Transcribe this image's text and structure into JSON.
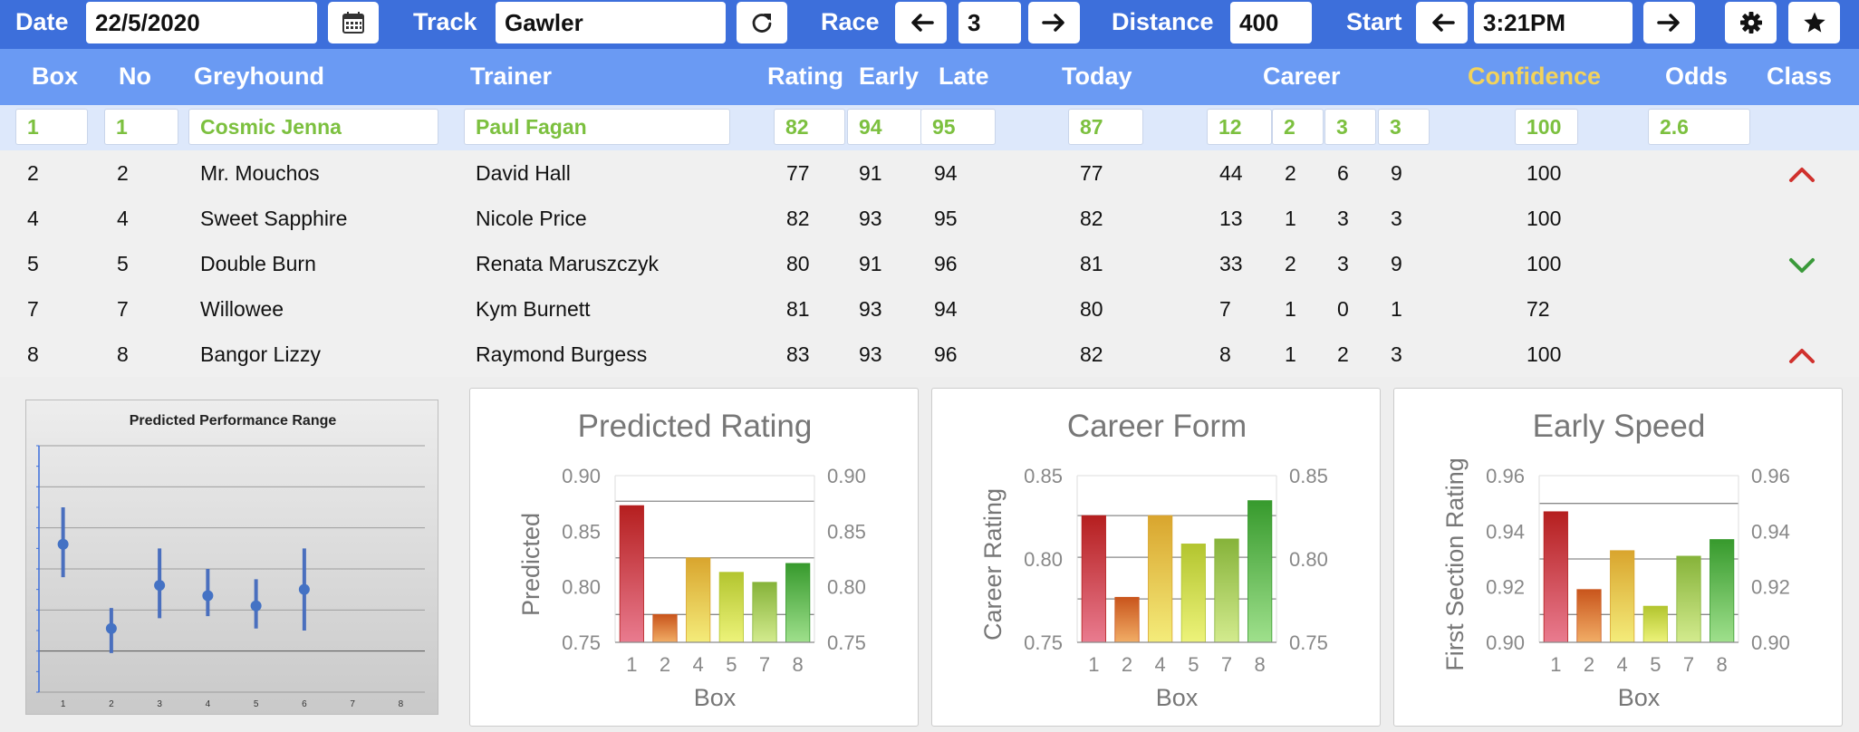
{
  "toolbar": {
    "date_label": "Date",
    "date_value": "22/5/2020",
    "calendar_icon": "calendar-icon",
    "track_label": "Track",
    "track_value": "Gawler",
    "refresh_icon": "refresh-icon",
    "race_label": "Race",
    "race_value": "3",
    "distance_label": "Distance",
    "distance_value": "400",
    "start_label": "Start",
    "start_value": "3:21PM",
    "settings_icon": "gear-icon",
    "favourite_icon": "star-icon"
  },
  "columns": {
    "box": "Box",
    "no": "No",
    "greyhound": "Greyhound",
    "trainer": "Trainer",
    "rating": "Rating",
    "early": "Early",
    "late": "Late",
    "today": "Today",
    "career": "Career",
    "confidence": "Confidence",
    "odds": "Odds",
    "class": "Class"
  },
  "selected_runner": {
    "box": "1",
    "no": "1",
    "greyhound": "Cosmic Jenna",
    "trainer": "Paul Fagan",
    "rating": "82",
    "early": "94",
    "late": "95",
    "today": "87",
    "career": [
      "12",
      "2",
      "3",
      "3"
    ],
    "confidence": "100",
    "odds": "2.6"
  },
  "runners": [
    {
      "box": "2",
      "no": "2",
      "greyhound": "Mr. Mouchos",
      "trainer": "David Hall",
      "rating": "77",
      "early": "91",
      "late": "94",
      "today": "77",
      "career": [
        "44",
        "2",
        "6",
        "9"
      ],
      "confidence": "100",
      "class_trend": "up"
    },
    {
      "box": "4",
      "no": "4",
      "greyhound": "Sweet Sapphire",
      "trainer": "Nicole Price",
      "rating": "82",
      "early": "93",
      "late": "95",
      "today": "82",
      "career": [
        "13",
        "1",
        "3",
        "3"
      ],
      "confidence": "100",
      "class_trend": "none"
    },
    {
      "box": "5",
      "no": "5",
      "greyhound": "Double Burn",
      "trainer": "Renata Maruszczyk",
      "rating": "80",
      "early": "91",
      "late": "96",
      "today": "81",
      "career": [
        "33",
        "2",
        "3",
        "9"
      ],
      "confidence": "100",
      "class_trend": "down"
    },
    {
      "box": "7",
      "no": "7",
      "greyhound": "Willowee",
      "trainer": "Kym Burnett",
      "rating": "81",
      "early": "93",
      "late": "94",
      "today": "80",
      "career": [
        "7",
        "1",
        "0",
        "1"
      ],
      "confidence": "72",
      "class_trend": "none"
    },
    {
      "box": "8",
      "no": "8",
      "greyhound": "Bangor Lizzy",
      "trainer": "Raymond Burgess",
      "rating": "83",
      "early": "93",
      "late": "96",
      "today": "82",
      "career": [
        "8",
        "1",
        "2",
        "3"
      ],
      "confidence": "100",
      "class_trend": "up"
    }
  ],
  "colors": {
    "toolbar_bg": "#3d6fdb",
    "header_bg": "#6a9af3",
    "selected_text": "#7cc03f",
    "confidence_header": "#f3d35b",
    "class_up": "#d0312d",
    "class_down": "#3a9a3a"
  },
  "chart_data": [
    {
      "type": "scatter",
      "title": "Predicted Performance Range",
      "x_ticks": [
        "1",
        "2",
        "3",
        "4",
        "5",
        "6",
        "7",
        "8"
      ],
      "points": [
        {
          "x": 1,
          "y": 0.72,
          "low": 0.56,
          "high": 0.9
        },
        {
          "x": 2,
          "y": 0.31,
          "low": 0.19,
          "high": 0.41
        },
        {
          "x": 3,
          "y": 0.52,
          "low": 0.36,
          "high": 0.7
        },
        {
          "x": 4,
          "y": 0.47,
          "low": 0.37,
          "high": 0.6
        },
        {
          "x": 5,
          "y": 0.42,
          "low": 0.31,
          "high": 0.55
        },
        {
          "x": 6,
          "y": 0.5,
          "low": 0.3,
          "high": 0.7
        }
      ],
      "ylim": [
        0,
        1.2
      ],
      "grid": true
    },
    {
      "type": "bar",
      "title": "Predicted Rating",
      "xlabel": "Box",
      "ylabel": "Predicted",
      "categories": [
        "1",
        "2",
        "4",
        "5",
        "7",
        "8"
      ],
      "values": [
        0.873,
        0.775,
        0.826,
        0.813,
        0.804,
        0.821
      ],
      "ylim": [
        0.75,
        0.9
      ],
      "y_ticks": [
        "0.75",
        "0.80",
        "0.85",
        "0.90"
      ],
      "gridlines": [
        0.775,
        0.826,
        0.877
      ]
    },
    {
      "type": "bar",
      "title": "Career Form",
      "xlabel": "Box",
      "ylabel": "Career Rating",
      "categories": [
        "1",
        "2",
        "4",
        "5",
        "7",
        "8"
      ],
      "values": [
        0.826,
        0.777,
        0.826,
        0.809,
        0.812,
        0.835
      ],
      "ylim": [
        0.75,
        0.85
      ],
      "y_ticks": [
        "0.75",
        "0.80",
        "0.85"
      ],
      "gridlines": [
        0.776,
        0.801,
        0.826
      ]
    },
    {
      "type": "bar",
      "title": "Early Speed",
      "xlabel": "Box",
      "ylabel": "First Section Rating",
      "categories": [
        "1",
        "2",
        "4",
        "5",
        "7",
        "8"
      ],
      "values": [
        0.947,
        0.919,
        0.933,
        0.913,
        0.931,
        0.937
      ],
      "ylim": [
        0.9,
        0.96
      ],
      "y_ticks": [
        "0.90",
        "0.92",
        "0.94",
        "0.96"
      ],
      "gridlines": [
        0.91,
        0.93,
        0.95
      ]
    }
  ]
}
